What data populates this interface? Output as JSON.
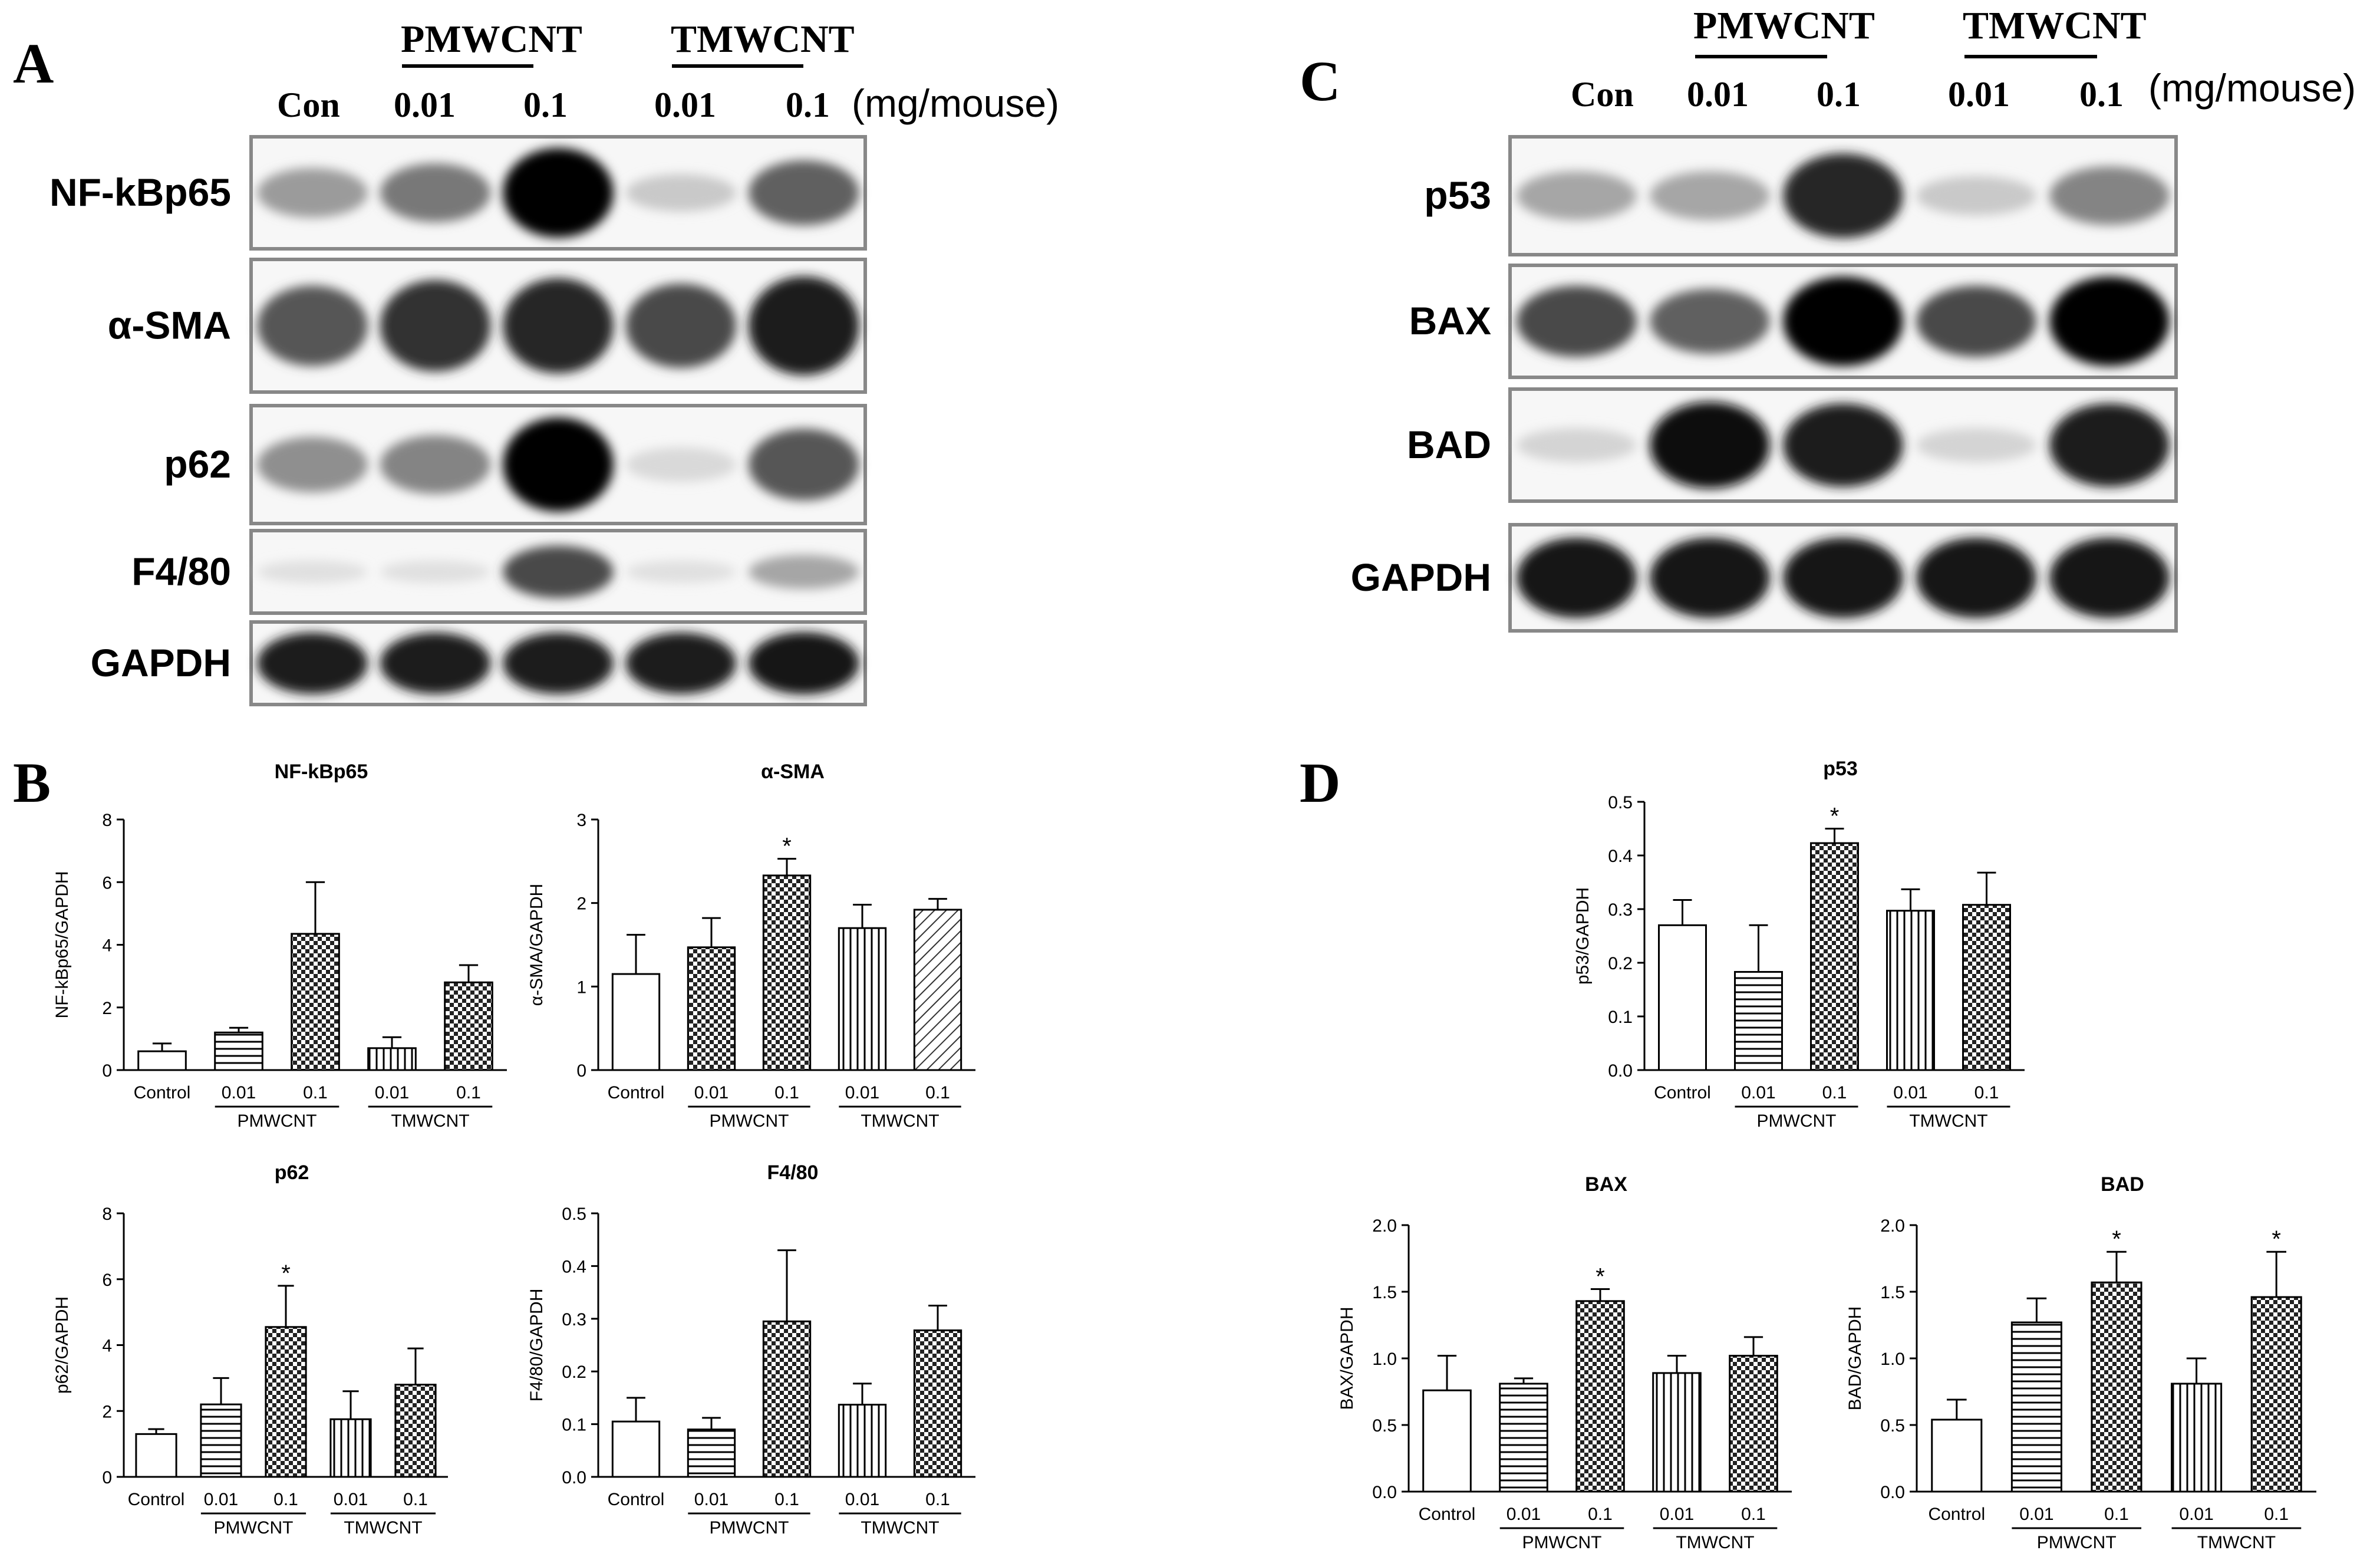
{
  "panels": {
    "A": "A",
    "B": "B",
    "C": "C",
    "D": "D"
  },
  "blot_header": {
    "con": "Con",
    "group1": "PMWCNT",
    "group2": "TMWCNT",
    "dose_low": "0.01",
    "dose_high": "0.1",
    "unit": "(mg/mouse)"
  },
  "blots_A": [
    {
      "label": "NF-kBp65",
      "intensity": [
        0.35,
        0.5,
        1.0,
        0.15,
        0.6
      ]
    },
    {
      "label": "α-SMA",
      "intensity": [
        0.65,
        0.8,
        0.85,
        0.7,
        0.9
      ]
    },
    {
      "label": "p62",
      "intensity": [
        0.4,
        0.45,
        1.0,
        0.08,
        0.65
      ]
    },
    {
      "label": "F4/80",
      "intensity": [
        0.05,
        0.05,
        0.7,
        0.05,
        0.3
      ]
    },
    {
      "label": "GAPDH",
      "intensity": [
        0.9,
        0.9,
        0.9,
        0.9,
        0.92
      ]
    }
  ],
  "blots_C": [
    {
      "label": "p53",
      "intensity": [
        0.3,
        0.3,
        0.85,
        0.15,
        0.45
      ]
    },
    {
      "label": "BAX",
      "intensity": [
        0.7,
        0.6,
        1.0,
        0.7,
        1.0
      ]
    },
    {
      "label": "BAD",
      "intensity": [
        0.1,
        0.95,
        0.9,
        0.1,
        0.9
      ]
    },
    {
      "label": "GAPDH",
      "intensity": [
        0.92,
        0.92,
        0.92,
        0.92,
        0.92
      ]
    }
  ],
  "chart_data": [
    {
      "type": "bar",
      "title": "NF-kBp65",
      "ylabel": "NF-kBp65/GAPDH",
      "categories": [
        "Control",
        "0.01",
        "0.1",
        "0.01",
        "0.1"
      ],
      "groups": [
        "PMWCNT",
        "TMWCNT"
      ],
      "values": [
        0.6,
        1.2,
        4.35,
        0.7,
        2.8
      ],
      "errors": [
        0.25,
        0.15,
        1.65,
        0.35,
        0.55
      ],
      "significant": [
        false,
        false,
        false,
        false,
        false
      ],
      "patterns": [
        "none",
        "hlines",
        "checker",
        "vlines",
        "checker"
      ],
      "ylim": [
        0,
        8
      ],
      "yticks": [
        0,
        2,
        4,
        6,
        8
      ]
    },
    {
      "type": "bar",
      "title": "α-SMA",
      "ylabel": "α-SMA/GAPDH",
      "categories": [
        "Control",
        "0.01",
        "0.1",
        "0.01",
        "0.1"
      ],
      "groups": [
        "PMWCNT",
        "TMWCNT"
      ],
      "values": [
        1.15,
        1.47,
        2.33,
        1.7,
        1.92
      ],
      "errors": [
        0.47,
        0.35,
        0.2,
        0.28,
        0.13
      ],
      "significant": [
        false,
        false,
        true,
        false,
        false
      ],
      "patterns": [
        "none",
        "checker",
        "checker",
        "vlines",
        "diag"
      ],
      "ylim": [
        0,
        3
      ],
      "yticks": [
        0,
        1,
        2,
        3
      ]
    },
    {
      "type": "bar",
      "title": "p62",
      "ylabel": "p62/GAPDH",
      "categories": [
        "Control",
        "0.01",
        "0.1",
        "0.01",
        "0.1"
      ],
      "groups": [
        "PMWCNT",
        "TMWCNT"
      ],
      "values": [
        1.3,
        2.2,
        4.55,
        1.75,
        2.8
      ],
      "errors": [
        0.15,
        0.8,
        1.25,
        0.85,
        1.1
      ],
      "significant": [
        false,
        false,
        true,
        false,
        false
      ],
      "patterns": [
        "none",
        "hlines",
        "checker",
        "vlines",
        "checker"
      ],
      "ylim": [
        0,
        8
      ],
      "yticks": [
        0,
        2,
        4,
        6,
        8
      ]
    },
    {
      "type": "bar",
      "title": "F4/80",
      "ylabel": "F4/80/GAPDH",
      "categories": [
        "Control",
        "0.01",
        "0.1",
        "0.01",
        "0.1"
      ],
      "groups": [
        "PMWCNT",
        "TMWCNT"
      ],
      "values": [
        0.105,
        0.09,
        0.295,
        0.137,
        0.278
      ],
      "errors": [
        0.045,
        0.022,
        0.135,
        0.04,
        0.047
      ],
      "significant": [
        false,
        false,
        false,
        false,
        false
      ],
      "patterns": [
        "none",
        "hlines",
        "checker",
        "vlines",
        "checker"
      ],
      "ylim": [
        0,
        0.5
      ],
      "yticks": [
        0.0,
        0.1,
        0.2,
        0.3,
        0.4,
        0.5
      ]
    },
    {
      "type": "bar",
      "title": "p53",
      "ylabel": "p53/GAPDH",
      "categories": [
        "Control",
        "0.01",
        "0.1",
        "0.01",
        "0.1"
      ],
      "groups": [
        "PMWCNT",
        "TMWCNT"
      ],
      "values": [
        0.27,
        0.183,
        0.423,
        0.297,
        0.308
      ],
      "errors": [
        0.047,
        0.087,
        0.027,
        0.04,
        0.06
      ],
      "significant": [
        false,
        false,
        true,
        false,
        false
      ],
      "patterns": [
        "none",
        "hlines",
        "checker",
        "vlines",
        "checker"
      ],
      "ylim": [
        0,
        0.5
      ],
      "yticks": [
        0.0,
        0.1,
        0.2,
        0.3,
        0.4,
        0.5
      ]
    },
    {
      "type": "bar",
      "title": "BAX",
      "ylabel": "BAX/GAPDH",
      "categories": [
        "Control",
        "0.01",
        "0.1",
        "0.01",
        "0.1"
      ],
      "groups": [
        "PMWCNT",
        "TMWCNT"
      ],
      "values": [
        0.76,
        0.81,
        1.43,
        0.89,
        1.02
      ],
      "errors": [
        0.26,
        0.04,
        0.09,
        0.13,
        0.14
      ],
      "significant": [
        false,
        false,
        true,
        false,
        false
      ],
      "patterns": [
        "none",
        "hlines",
        "checker",
        "vlines",
        "checker"
      ],
      "ylim": [
        0,
        2.0
      ],
      "yticks": [
        0.0,
        0.5,
        1.0,
        1.5,
        2.0
      ]
    },
    {
      "type": "bar",
      "title": "BAD",
      "ylabel": "BAD/GAPDH",
      "categories": [
        "Control",
        "0.01",
        "0.1",
        "0.01",
        "0.1"
      ],
      "groups": [
        "PMWCNT",
        "TMWCNT"
      ],
      "values": [
        0.54,
        1.27,
        1.57,
        0.81,
        1.46
      ],
      "errors": [
        0.15,
        0.18,
        0.23,
        0.19,
        0.34
      ],
      "significant": [
        false,
        false,
        true,
        false,
        true
      ],
      "patterns": [
        "none",
        "hlines",
        "checker",
        "vlines",
        "checker"
      ],
      "ylim": [
        0,
        2.0
      ],
      "yticks": [
        0.0,
        0.5,
        1.0,
        1.5,
        2.0
      ]
    }
  ]
}
